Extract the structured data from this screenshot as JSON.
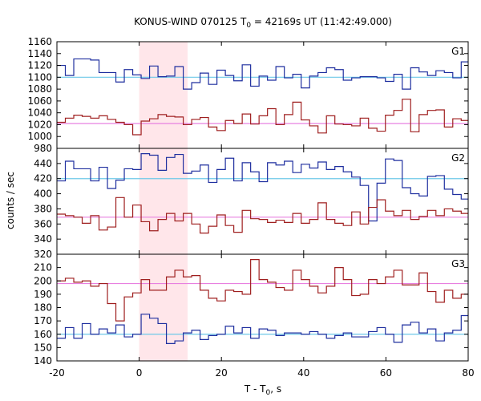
{
  "chart_data": {
    "type": "line",
    "title": "KONUS-WIND 070125 T",
    "title_sub": "0",
    "title_rest": " = 42169s UT (11:42:49.000)",
    "xlabel": "T - T",
    "xlabel_sub": "0",
    "xlabel_rest": ", s",
    "ylabel": "counts / sec",
    "xlim": [
      -20,
      80
    ],
    "x_ticks": [
      -20,
      0,
      20,
      40,
      60,
      80
    ],
    "highlight_interval": [
      0,
      11.776
    ],
    "bin_edges": [
      -20,
      -17.952,
      -15.904,
      -13.856,
      -11.808,
      -9.76,
      -7.712,
      -5.664,
      -3.616,
      -1.568,
      0.48,
      2.528,
      4.576,
      6.624,
      8.672,
      10.72,
      12.768,
      14.816,
      16.864,
      18.912,
      20.96,
      23.008,
      25.056,
      27.104,
      29.152,
      31.2,
      33.248,
      35.296,
      37.344,
      39.392,
      41.44,
      43.488,
      45.536,
      47.584,
      49.632,
      51.68,
      53.728,
      55.776,
      57.824,
      59.872,
      61.92,
      63.968,
      66.016,
      68.064,
      70.112,
      72.16,
      74.208,
      76.256,
      78.304,
      80
    ],
    "panels": [
      {
        "label": "G1",
        "ylim": [
          980,
          1160
        ],
        "y_ticks": [
          980,
          1000,
          1020,
          1040,
          1060,
          1080,
          1100,
          1120,
          1140,
          1160
        ],
        "series": [
          {
            "color": "#1f2f9f",
            "values": [
              1120,
              1103,
              1131,
              1131,
              1129,
              1108,
              1108,
              1092,
              1113,
              1104,
              1098,
              1119,
              1101,
              1102,
              1118,
              1080,
              1091,
              1107,
              1088,
              1112,
              1103,
              1094,
              1121,
              1085,
              1102,
              1095,
              1118,
              1099,
              1105,
              1082,
              1102,
              1108,
              1116,
              1113,
              1095,
              1099,
              1101,
              1101,
              1099,
              1093,
              1105,
              1080,
              1116,
              1109,
              1103,
              1111,
              1108,
              1099,
              1126
            ]
          },
          {
            "color": "#9f1f1f",
            "values": [
              1024,
              1031,
              1036,
              1034,
              1031,
              1035,
              1029,
              1024,
              1020,
              1003,
              1026,
              1030,
              1037,
              1034,
              1033,
              1020,
              1029,
              1032,
              1016,
              1010,
              1027,
              1022,
              1038,
              1021,
              1035,
              1047,
              1020,
              1037,
              1058,
              1028,
              1018,
              1006,
              1035,
              1021,
              1020,
              1018,
              1031,
              1014,
              1009,
              1036,
              1044,
              1063,
              1008,
              1037,
              1044,
              1045,
              1016,
              1030,
              1027
            ]
          },
          {
            "color": "#6ec8e8",
            "line": 1100
          },
          {
            "color": "#e880e0",
            "line": 1022
          }
        ]
      },
      {
        "label": "G2",
        "ylim": [
          320,
          460
        ],
        "y_ticks": [
          320,
          340,
          360,
          380,
          400,
          420,
          440,
          460
        ],
        "series": [
          {
            "color": "#1f2f9f",
            "values": [
              417,
              443,
              433,
              433,
              417,
              435,
              407,
              418,
              433,
              432,
              453,
              451,
              431,
              448,
              452,
              427,
              430,
              438,
              415,
              432,
              447,
              417,
              441,
              429,
              416,
              441,
              438,
              443,
              428,
              439,
              434,
              442,
              432,
              436,
              429,
              422,
              411,
              364,
              414,
              446,
              444,
              408,
              400,
              397,
              423,
              424,
              406,
              399,
              393
            ]
          },
          {
            "color": "#9f1f1f",
            "values": [
              373,
              371,
              369,
              361,
              371,
              352,
              356,
              395,
              369,
              385,
              363,
              351,
              366,
              374,
              364,
              374,
              360,
              348,
              357,
              372,
              358,
              349,
              378,
              367,
              366,
              362,
              365,
              362,
              374,
              361,
              366,
              388,
              366,
              361,
              358,
              376,
              360,
              382,
              392,
              377,
              371,
              378,
              366,
              370,
              378,
              371,
              380,
              377,
              374
            ]
          },
          {
            "color": "#6ec8e8",
            "line": 420
          },
          {
            "color": "#e880e0",
            "line": 369
          }
        ]
      },
      {
        "label": "G3",
        "ylim": [
          140,
          220
        ],
        "y_ticks": [
          140,
          150,
          160,
          170,
          180,
          190,
          200,
          210,
          220
        ],
        "series": [
          {
            "color": "#1f2f9f",
            "values": [
              157,
              165,
              157,
              168,
              160,
              164,
              161,
              167,
              158,
              160,
              175,
              172,
              168,
              153,
              155,
              161,
              163,
              156,
              159,
              160,
              166,
              161,
              165,
              157,
              164,
              163,
              159,
              161,
              161,
              160,
              162,
              160,
              157,
              159,
              161,
              158,
              158,
              162,
              165,
              160,
              154,
              167,
              169,
              161,
              164,
              155,
              161,
              163,
              174
            ]
          },
          {
            "color": "#9f1f1f",
            "values": [
              200,
              202,
              199,
              200,
              196,
              198,
              183,
              170,
              188,
              191,
              201,
              193,
              193,
              203,
              208,
              203,
              204,
              193,
              187,
              185,
              193,
              192,
              190,
              216,
              201,
              199,
              195,
              193,
              208,
              201,
              196,
              191,
              196,
              210,
              201,
              189,
              190,
              201,
              198,
              203,
              208,
              197,
              197,
              206,
              192,
              184,
              193,
              187,
              190
            ]
          },
          {
            "color": "#e880e0",
            "line": 198
          },
          {
            "color": "#6ec8e8",
            "line": 160
          }
        ]
      }
    ]
  }
}
